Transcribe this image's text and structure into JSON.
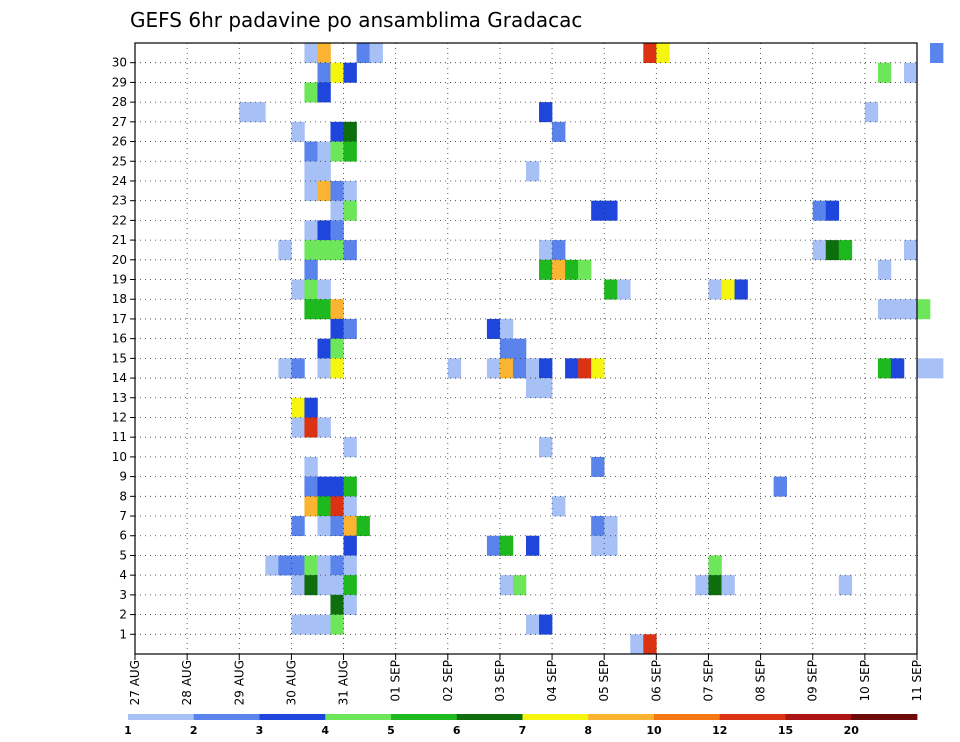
{
  "chart_data": {
    "type": "heatmap",
    "title": "GEFS 6hr padavine po ansamblima Gradacac",
    "x_labels": [
      "27 AUG",
      "28 AUG",
      "29 AUG",
      "30 AUG",
      "31 AUG",
      "01 SEP",
      "02 SEP",
      "03 SEP",
      "04 SEP",
      "05 SEP",
      "06 SEP",
      "07 SEP",
      "08 SEP",
      "09 SEP",
      "10 SEP",
      "11 SEP"
    ],
    "y_labels": [
      "1",
      "2",
      "3",
      "4",
      "5",
      "6",
      "7",
      "8",
      "9",
      "10",
      "11",
      "12",
      "13",
      "14",
      "15",
      "16",
      "17",
      "18",
      "19",
      "20",
      "21",
      "22",
      "23",
      "24",
      "25",
      "26",
      "27",
      "28",
      "29",
      "30"
    ],
    "grid": true,
    "time_steps_per_day": 4,
    "colorbar": {
      "levels": [
        "1",
        "2",
        "3",
        "4",
        "5",
        "6",
        "7",
        "8",
        "10",
        "12",
        "15",
        "20"
      ],
      "colors": [
        "#a7c0f6",
        "#5a84ec",
        "#1e46dc",
        "#6ee65a",
        "#1eb91e",
        "#0e6e0e",
        "#f5f50f",
        "#fab432",
        "#f57814",
        "#dc3214",
        "#aa1414",
        "#6e0a0a"
      ]
    },
    "cells": [
      {
        "member": 30,
        "step": 13,
        "level": 1
      },
      {
        "member": 30,
        "step": 14,
        "level": 8
      },
      {
        "member": 30,
        "step": 17,
        "level": 2
      },
      {
        "member": 30,
        "step": 18,
        "level": 1
      },
      {
        "member": 30,
        "step": 39,
        "level": 12
      },
      {
        "member": 30,
        "step": 40,
        "level": 7
      },
      {
        "member": 30,
        "step": 61,
        "level": 2
      },
      {
        "member": 29,
        "step": 14,
        "level": 2
      },
      {
        "member": 29,
        "step": 15,
        "level": 7
      },
      {
        "member": 29,
        "step": 16,
        "level": 3
      },
      {
        "member": 29,
        "step": 57,
        "level": 4
      },
      {
        "member": 29,
        "step": 59,
        "level": 1
      },
      {
        "member": 28,
        "step": 13,
        "level": 4
      },
      {
        "member": 28,
        "step": 14,
        "level": 3
      },
      {
        "member": 27,
        "step": 8,
        "level": 1
      },
      {
        "member": 27,
        "step": 9,
        "level": 1
      },
      {
        "member": 27,
        "step": 31,
        "level": 3
      },
      {
        "member": 27,
        "step": 56,
        "level": 1
      },
      {
        "member": 26,
        "step": 12,
        "level": 1
      },
      {
        "member": 26,
        "step": 15,
        "level": 3
      },
      {
        "member": 26,
        "step": 16,
        "level": 6
      },
      {
        "member": 26,
        "step": 32,
        "level": 2
      },
      {
        "member": 25,
        "step": 13,
        "level": 2
      },
      {
        "member": 25,
        "step": 14,
        "level": 1
      },
      {
        "member": 25,
        "step": 15,
        "level": 4
      },
      {
        "member": 25,
        "step": 16,
        "level": 5
      },
      {
        "member": 24,
        "step": 13,
        "level": 1
      },
      {
        "member": 24,
        "step": 14,
        "level": 1
      },
      {
        "member": 24,
        "step": 30,
        "level": 1
      },
      {
        "member": 23,
        "step": 13,
        "level": 1
      },
      {
        "member": 23,
        "step": 14,
        "level": 8
      },
      {
        "member": 23,
        "step": 15,
        "level": 2
      },
      {
        "member": 23,
        "step": 16,
        "level": 1
      },
      {
        "member": 22,
        "step": 15,
        "level": 1
      },
      {
        "member": 22,
        "step": 16,
        "level": 4
      },
      {
        "member": 22,
        "step": 35,
        "level": 3
      },
      {
        "member": 22,
        "step": 36,
        "level": 3
      },
      {
        "member": 22,
        "step": 52,
        "level": 2
      },
      {
        "member": 22,
        "step": 53,
        "level": 3
      },
      {
        "member": 21,
        "step": 13,
        "level": 1
      },
      {
        "member": 21,
        "step": 14,
        "level": 3
      },
      {
        "member": 21,
        "step": 15,
        "level": 2
      },
      {
        "member": 20,
        "step": 11,
        "level": 1
      },
      {
        "member": 20,
        "step": 13,
        "level": 4
      },
      {
        "member": 20,
        "step": 14,
        "level": 4
      },
      {
        "member": 20,
        "step": 15,
        "level": 4
      },
      {
        "member": 20,
        "step": 16,
        "level": 2
      },
      {
        "member": 20,
        "step": 31,
        "level": 1
      },
      {
        "member": 20,
        "step": 32,
        "level": 2
      },
      {
        "member": 20,
        "step": 52,
        "level": 1
      },
      {
        "member": 20,
        "step": 53,
        "level": 6
      },
      {
        "member": 20,
        "step": 54,
        "level": 5
      },
      {
        "member": 20,
        "step": 59,
        "level": 1
      },
      {
        "member": 19,
        "step": 13,
        "level": 2
      },
      {
        "member": 19,
        "step": 31,
        "level": 5
      },
      {
        "member": 19,
        "step": 32,
        "level": 8
      },
      {
        "member": 19,
        "step": 33,
        "level": 5
      },
      {
        "member": 19,
        "step": 34,
        "level": 4
      },
      {
        "member": 19,
        "step": 57,
        "level": 1
      },
      {
        "member": 18,
        "step": 12,
        "level": 1
      },
      {
        "member": 18,
        "step": 13,
        "level": 4
      },
      {
        "member": 18,
        "step": 14,
        "level": 1
      },
      {
        "member": 18,
        "step": 36,
        "level": 5
      },
      {
        "member": 18,
        "step": 37,
        "level": 1
      },
      {
        "member": 18,
        "step": 44,
        "level": 1
      },
      {
        "member": 18,
        "step": 45,
        "level": 7
      },
      {
        "member": 18,
        "step": 46,
        "level": 3
      },
      {
        "member": 17,
        "step": 13,
        "level": 5
      },
      {
        "member": 17,
        "step": 14,
        "level": 5
      },
      {
        "member": 17,
        "step": 15,
        "level": 8
      },
      {
        "member": 17,
        "step": 57,
        "level": 1
      },
      {
        "member": 17,
        "step": 58,
        "level": 1
      },
      {
        "member": 17,
        "step": 59,
        "level": 1
      },
      {
        "member": 17,
        "step": 60,
        "level": 4
      },
      {
        "member": 16,
        "step": 15,
        "level": 3
      },
      {
        "member": 16,
        "step": 16,
        "level": 2
      },
      {
        "member": 16,
        "step": 27,
        "level": 3
      },
      {
        "member": 16,
        "step": 28,
        "level": 1
      },
      {
        "member": 15,
        "step": 14,
        "level": 3
      },
      {
        "member": 15,
        "step": 15,
        "level": 4
      },
      {
        "member": 15,
        "step": 28,
        "level": 2
      },
      {
        "member": 15,
        "step": 29,
        "level": 2
      },
      {
        "member": 14,
        "step": 11,
        "level": 1
      },
      {
        "member": 14,
        "step": 12,
        "level": 2
      },
      {
        "member": 14,
        "step": 14,
        "level": 1
      },
      {
        "member": 14,
        "step": 15,
        "level": 7
      },
      {
        "member": 14,
        "step": 24,
        "level": 1
      },
      {
        "member": 14,
        "step": 27,
        "level": 1
      },
      {
        "member": 14,
        "step": 28,
        "level": 8
      },
      {
        "member": 14,
        "step": 29,
        "level": 2
      },
      {
        "member": 14,
        "step": 30,
        "level": 1
      },
      {
        "member": 14,
        "step": 31,
        "level": 3
      },
      {
        "member": 14,
        "step": 33,
        "level": 3
      },
      {
        "member": 14,
        "step": 34,
        "level": 12
      },
      {
        "member": 14,
        "step": 35,
        "level": 7
      },
      {
        "member": 14,
        "step": 57,
        "level": 5
      },
      {
        "member": 14,
        "step": 58,
        "level": 3
      },
      {
        "member": 14,
        "step": 60,
        "level": 1
      },
      {
        "member": 14,
        "step": 61,
        "level": 1
      },
      {
        "member": 13,
        "step": 30,
        "level": 1
      },
      {
        "member": 13,
        "step": 31,
        "level": 1
      },
      {
        "member": 12,
        "step": 12,
        "level": 7
      },
      {
        "member": 12,
        "step": 13,
        "level": 3
      },
      {
        "member": 11,
        "step": 12,
        "level": 1
      },
      {
        "member": 11,
        "step": 13,
        "level": 12
      },
      {
        "member": 11,
        "step": 14,
        "level": 1
      },
      {
        "member": 10,
        "step": 16,
        "level": 1
      },
      {
        "member": 10,
        "step": 31,
        "level": 1
      },
      {
        "member": 9,
        "step": 13,
        "level": 1
      },
      {
        "member": 9,
        "step": 35,
        "level": 2
      },
      {
        "member": 8,
        "step": 13,
        "level": 2
      },
      {
        "member": 8,
        "step": 14,
        "level": 3
      },
      {
        "member": 8,
        "step": 15,
        "level": 3
      },
      {
        "member": 8,
        "step": 16,
        "level": 5
      },
      {
        "member": 8,
        "step": 49,
        "level": 2
      },
      {
        "member": 7,
        "step": 13,
        "level": 8
      },
      {
        "member": 7,
        "step": 14,
        "level": 5
      },
      {
        "member": 7,
        "step": 15,
        "level": 12
      },
      {
        "member": 7,
        "step": 16,
        "level": 1
      },
      {
        "member": 7,
        "step": 32,
        "level": 1
      },
      {
        "member": 6,
        "step": 12,
        "level": 2
      },
      {
        "member": 6,
        "step": 14,
        "level": 1
      },
      {
        "member": 6,
        "step": 15,
        "level": 2
      },
      {
        "member": 6,
        "step": 16,
        "level": 8
      },
      {
        "member": 6,
        "step": 17,
        "level": 5
      },
      {
        "member": 6,
        "step": 35,
        "level": 2
      },
      {
        "member": 6,
        "step": 36,
        "level": 1
      },
      {
        "member": 5,
        "step": 16,
        "level": 3
      },
      {
        "member": 5,
        "step": 27,
        "level": 2
      },
      {
        "member": 5,
        "step": 28,
        "level": 5
      },
      {
        "member": 5,
        "step": 30,
        "level": 3
      },
      {
        "member": 5,
        "step": 35,
        "level": 1
      },
      {
        "member": 5,
        "step": 36,
        "level": 1
      },
      {
        "member": 4,
        "step": 10,
        "level": 1
      },
      {
        "member": 4,
        "step": 11,
        "level": 2
      },
      {
        "member": 4,
        "step": 12,
        "level": 2
      },
      {
        "member": 4,
        "step": 13,
        "level": 4
      },
      {
        "member": 4,
        "step": 14,
        "level": 1
      },
      {
        "member": 4,
        "step": 15,
        "level": 2
      },
      {
        "member": 4,
        "step": 16,
        "level": 1
      },
      {
        "member": 4,
        "step": 44,
        "level": 4
      },
      {
        "member": 3,
        "step": 12,
        "level": 1
      },
      {
        "member": 3,
        "step": 13,
        "level": 6
      },
      {
        "member": 3,
        "step": 14,
        "level": 1
      },
      {
        "member": 3,
        "step": 15,
        "level": 1
      },
      {
        "member": 3,
        "step": 16,
        "level": 5
      },
      {
        "member": 3,
        "step": 28,
        "level": 1
      },
      {
        "member": 3,
        "step": 29,
        "level": 4
      },
      {
        "member": 3,
        "step": 43,
        "level": 1
      },
      {
        "member": 3,
        "step": 44,
        "level": 6
      },
      {
        "member": 3,
        "step": 45,
        "level": 1
      },
      {
        "member": 3,
        "step": 54,
        "level": 1
      },
      {
        "member": 2,
        "step": 15,
        "level": 6
      },
      {
        "member": 2,
        "step": 16,
        "level": 1
      },
      {
        "member": 1,
        "step": 12,
        "level": 1
      },
      {
        "member": 1,
        "step": 13,
        "level": 1
      },
      {
        "member": 1,
        "step": 14,
        "level": 1
      },
      {
        "member": 1,
        "step": 15,
        "level": 4
      },
      {
        "member": 1,
        "step": 30,
        "level": 1
      },
      {
        "member": 1,
        "step": 31,
        "level": 3
      },
      {
        "member": 0,
        "step": 38,
        "level": 1
      },
      {
        "member": 0,
        "step": 39,
        "level": 12
      }
    ]
  }
}
